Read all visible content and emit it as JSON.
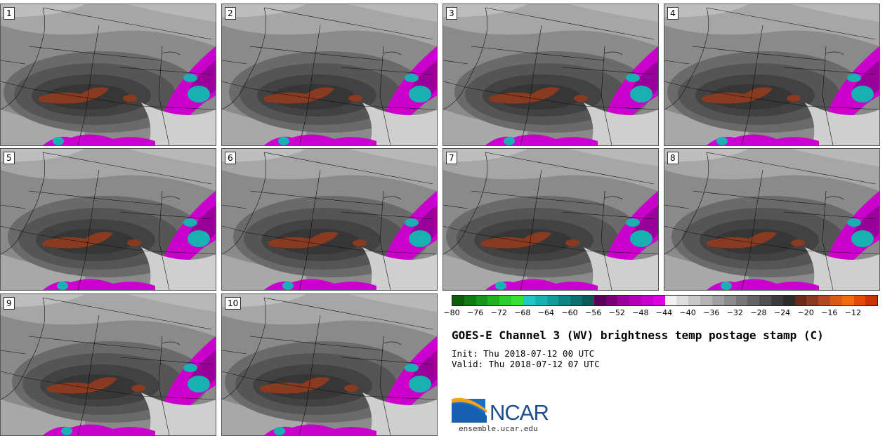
{
  "title": "GOES-E Channel 3 (WV) brightness temp postage stamp (C)",
  "init_text": "Init: Thu 2018-07-12 00 UTC",
  "valid_text": "Valid: Thu 2018-07-12 07 UTC",
  "logo_text": "NCAR",
  "logo_url": "ensemble.ucar.edu",
  "panels": [
    {
      "label": "1"
    },
    {
      "label": "2"
    },
    {
      "label": "3"
    },
    {
      "label": "4"
    },
    {
      "label": "5"
    },
    {
      "label": "6"
    },
    {
      "label": "7"
    },
    {
      "label": "8"
    },
    {
      "label": "9"
    },
    {
      "label": "10"
    }
  ],
  "colorbar": {
    "ticks": [
      "−80",
      "−76",
      "−72",
      "−68",
      "−64",
      "−60",
      "−56",
      "−52",
      "−48",
      "−44",
      "−40",
      "−36",
      "−32",
      "−28",
      "−24",
      "−20",
      "−16",
      "−12"
    ],
    "colors": [
      "#0a5e0a",
      "#127a12",
      "#1a961a",
      "#22b022",
      "#2ccc2c",
      "#38e038",
      "#1ec8c8",
      "#18b0b0",
      "#149a9a",
      "#108484",
      "#0c6e6e",
      "#0a5a5a",
      "#5a005a",
      "#7a007a",
      "#9a009a",
      "#b400b4",
      "#cc00cc",
      "#e000e0",
      "#f2f2f2",
      "#dedede",
      "#c8c8c8",
      "#b4b4b4",
      "#a0a0a0",
      "#8c8c8c",
      "#787878",
      "#646464",
      "#505050",
      "#3c3c3c",
      "#2c2c2c",
      "#6a2a1a",
      "#8a3a20",
      "#b04a20",
      "#d85a18",
      "#f06a10",
      "#e04a0a",
      "#c83008"
    ]
  }
}
